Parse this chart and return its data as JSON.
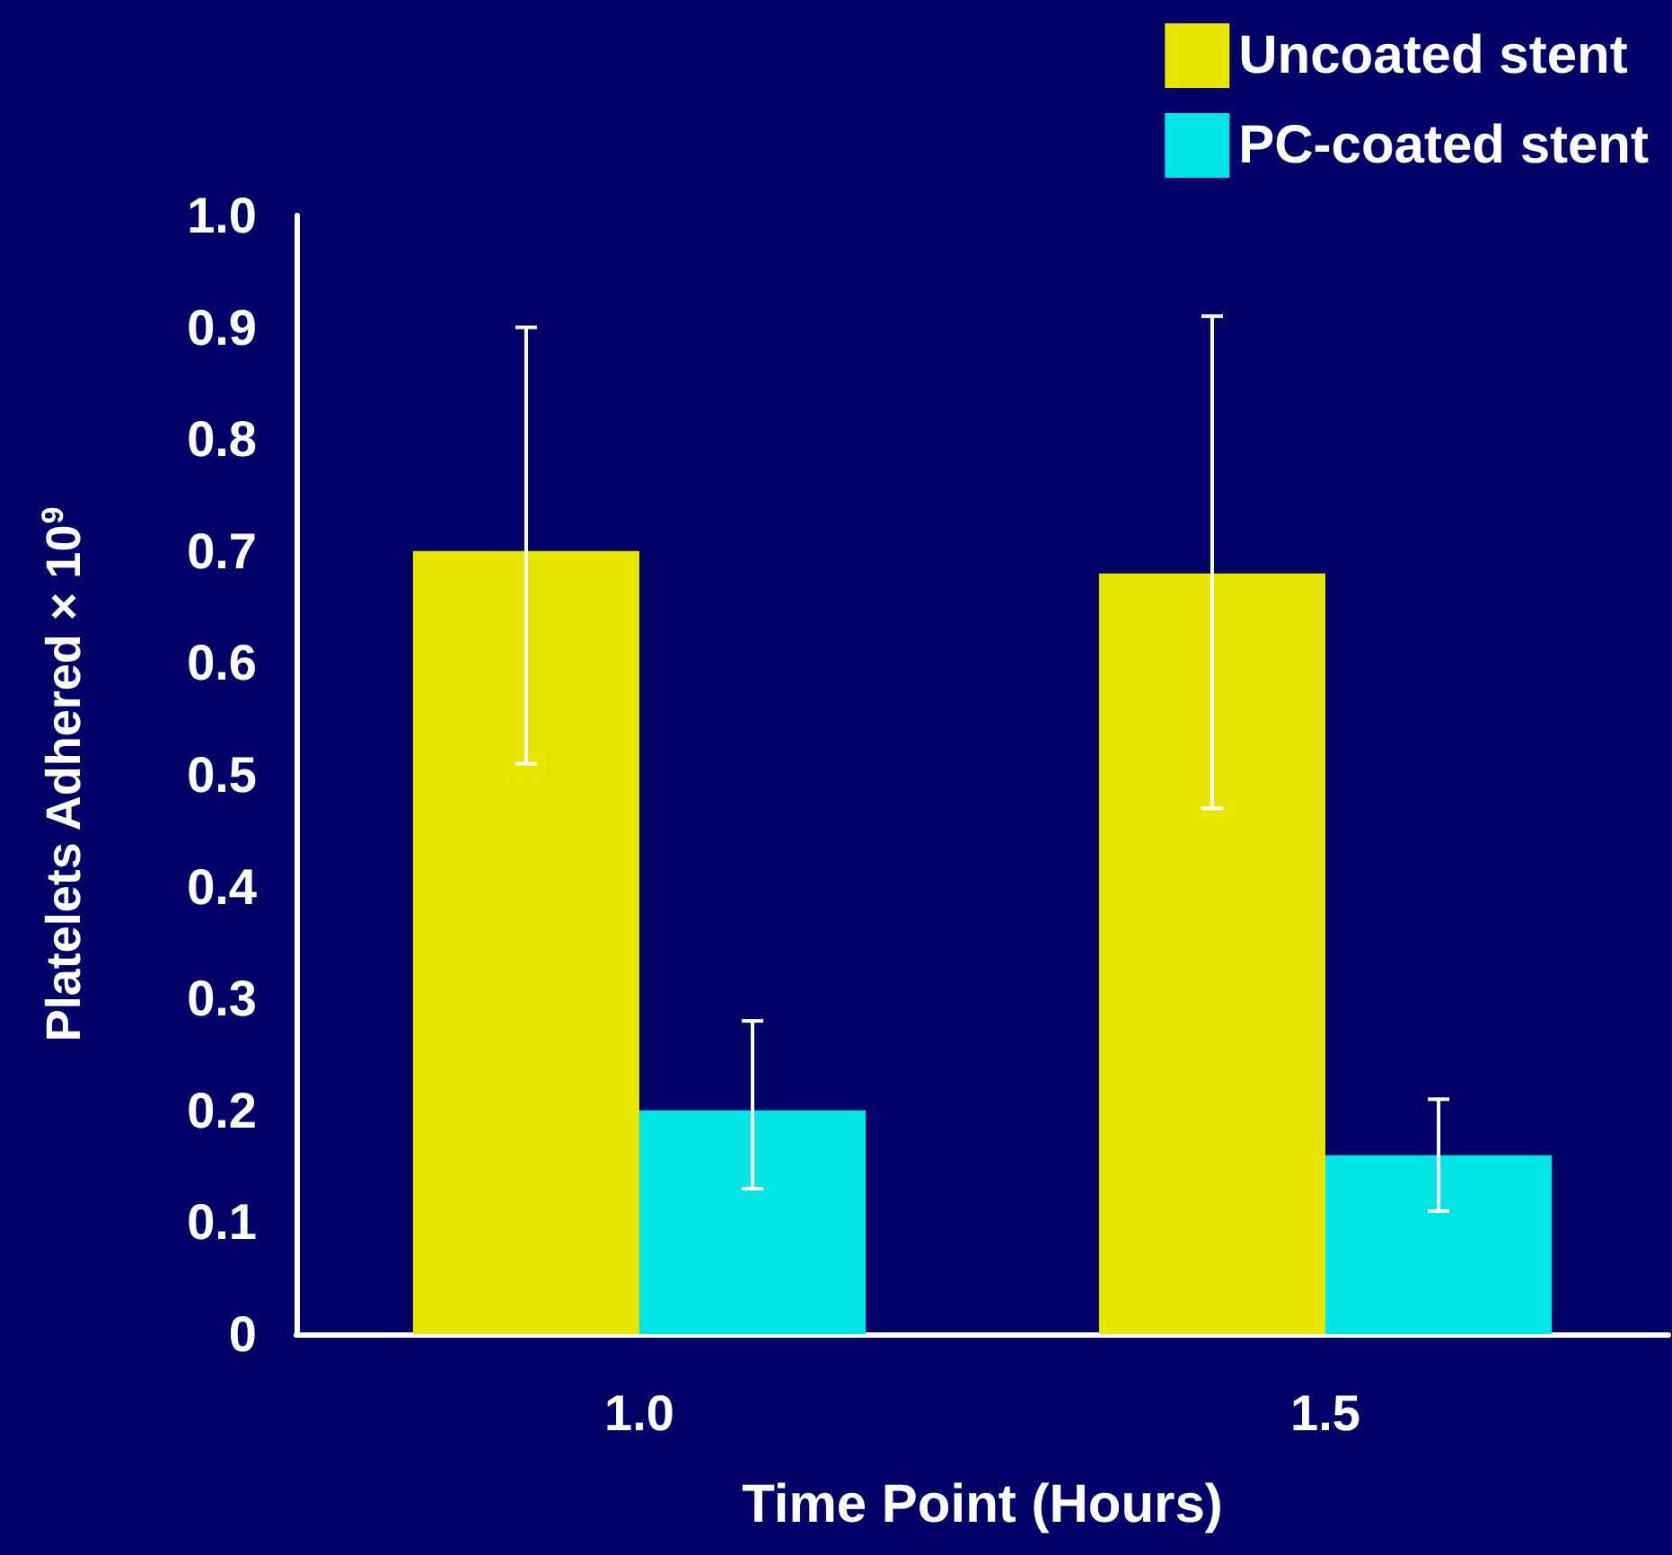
{
  "chart_data": {
    "type": "bar",
    "xlabel": "Time Point (Hours)",
    "ylabel": "Platelets Adhered × 10$^{9}$",
    "categories": [
      "1.0",
      "1.5"
    ],
    "series": [
      {
        "name": "Uncoated stent",
        "color": "#e6e600",
        "values": [
          0.7,
          0.68
        ],
        "errors": [
          [
            0.51,
            0.9
          ],
          [
            0.47,
            0.91
          ]
        ]
      },
      {
        "name": "PC-coated stent",
        "color": "#00e6e6",
        "values": [
          0.2,
          0.16
        ],
        "errors": [
          [
            0.13,
            0.28
          ],
          [
            0.11,
            0.21
          ]
        ]
      }
    ],
    "ylim": [
      0,
      1
    ],
    "yticks": [
      0,
      0.1,
      0.2,
      0.3,
      0.4,
      0.5,
      0.6,
      0.7,
      0.8,
      0.9,
      {
        "value": 1,
        "label": "1.0"
      }
    ],
    "grid": false,
    "legend": "top right"
  }
}
